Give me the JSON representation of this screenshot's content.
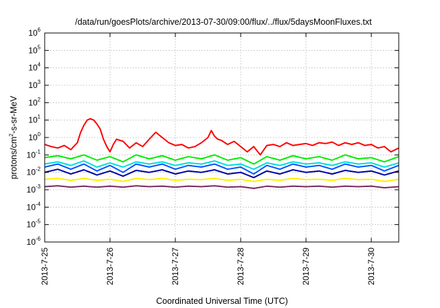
{
  "chart_data": {
    "type": "line",
    "title": "/data/run/goesPlots/archive/2013-07-30/09:00/flux/../flux/5daysMoonFluxes.txt",
    "xlabel": "Coordinated Universal Time (UTC)",
    "ylabel": {
      "base": "protons/cm",
      "sup": "2",
      "rest": "-s-sr-MeV"
    },
    "xlim": [
      0,
      5.42
    ],
    "x_unit": "days since 2013-7-25 00:00 UTC",
    "x_ticks": [
      {
        "x": 0,
        "label": "2013-7-25"
      },
      {
        "x": 1,
        "label": "2013-7-26"
      },
      {
        "x": 2,
        "label": "2013-7-27"
      },
      {
        "x": 3,
        "label": "2013-7-28"
      },
      {
        "x": 4,
        "label": "2013-7-29"
      },
      {
        "x": 5,
        "label": "2013-7-30"
      }
    ],
    "y_scale": "log",
    "ylim": [
      -6,
      6
    ],
    "y_ticks": [
      {
        "exp": 6,
        "base": "10",
        "sup": "6"
      },
      {
        "exp": 5,
        "base": "10",
        "sup": "5"
      },
      {
        "exp": 4,
        "base": "10",
        "sup": "4"
      },
      {
        "exp": 3,
        "base": "10",
        "sup": "3"
      },
      {
        "exp": 2,
        "base": "10",
        "sup": "2"
      },
      {
        "exp": 1,
        "base": "10",
        "sup": "1"
      },
      {
        "exp": 0,
        "base": "10",
        "sup": "0"
      },
      {
        "exp": -1,
        "base": "10",
        "sup": "-1"
      },
      {
        "exp": -2,
        "base": "10",
        "sup": "-2"
      },
      {
        "exp": -3,
        "base": "10",
        "sup": "-3"
      },
      {
        "exp": -4,
        "base": "10",
        "sup": "-4"
      },
      {
        "exp": -5,
        "base": "10",
        "sup": "-5"
      },
      {
        "exp": -6,
        "base": "10",
        "sup": "-6"
      }
    ],
    "grid": true,
    "legend": "none",
    "series": [
      {
        "color": "#ff0000",
        "x": [
          0,
          0.1,
          0.2,
          0.3,
          0.4,
          0.5,
          0.55,
          0.6,
          0.65,
          0.7,
          0.75,
          0.8,
          0.85,
          0.9,
          0.95,
          1.0,
          1.05,
          1.1,
          1.2,
          1.3,
          1.4,
          1.5,
          1.6,
          1.7,
          1.8,
          1.9,
          2.0,
          2.1,
          2.2,
          2.3,
          2.4,
          2.5,
          2.55,
          2.6,
          2.65,
          2.7,
          2.8,
          2.9,
          3.0,
          3.1,
          3.2,
          3.3,
          3.4,
          3.5,
          3.6,
          3.7,
          3.8,
          3.9,
          4.0,
          4.1,
          4.2,
          4.3,
          4.4,
          4.5,
          4.6,
          4.7,
          4.8,
          4.9,
          5.0,
          5.1,
          5.2,
          5.3,
          5.42
        ],
        "y": [
          0.4,
          0.3,
          0.25,
          0.35,
          0.2,
          0.5,
          2.0,
          5.0,
          10.0,
          12.0,
          10.0,
          6.0,
          3.0,
          0.8,
          0.3,
          0.15,
          0.4,
          0.8,
          0.6,
          0.25,
          0.5,
          0.3,
          0.8,
          2.0,
          1.0,
          0.5,
          0.35,
          0.4,
          0.25,
          0.3,
          0.5,
          1.0,
          2.5,
          1.2,
          0.8,
          0.7,
          0.4,
          0.6,
          0.3,
          0.15,
          0.3,
          0.1,
          0.35,
          0.4,
          0.3,
          0.5,
          0.35,
          0.4,
          0.45,
          0.35,
          0.5,
          0.45,
          0.55,
          0.35,
          0.5,
          0.4,
          0.5,
          0.35,
          0.4,
          0.25,
          0.3,
          0.15,
          0.25
        ]
      },
      {
        "color": "#00ee00",
        "x": [
          0,
          0.2,
          0.4,
          0.6,
          0.8,
          1.0,
          1.2,
          1.4,
          1.6,
          1.8,
          2.0,
          2.2,
          2.4,
          2.6,
          2.8,
          3.0,
          3.2,
          3.4,
          3.6,
          3.8,
          4.0,
          4.2,
          4.4,
          4.6,
          4.8,
          5.0,
          5.2,
          5.42
        ],
        "y": [
          0.07,
          0.09,
          0.06,
          0.1,
          0.05,
          0.08,
          0.04,
          0.1,
          0.06,
          0.09,
          0.05,
          0.08,
          0.06,
          0.1,
          0.05,
          0.07,
          0.03,
          0.08,
          0.05,
          0.09,
          0.06,
          0.08,
          0.05,
          0.1,
          0.06,
          0.07,
          0.04,
          0.08
        ]
      },
      {
        "color": "#00dddd",
        "x": [
          0,
          0.2,
          0.4,
          0.6,
          0.8,
          1.0,
          1.2,
          1.4,
          1.6,
          1.8,
          2.0,
          2.2,
          2.4,
          2.6,
          2.8,
          3.0,
          3.2,
          3.4,
          3.6,
          3.8,
          4.0,
          4.2,
          4.4,
          4.6,
          4.8,
          5.0,
          5.2,
          5.42
        ],
        "y": [
          0.03,
          0.04,
          0.025,
          0.045,
          0.02,
          0.035,
          0.02,
          0.04,
          0.03,
          0.04,
          0.025,
          0.035,
          0.03,
          0.045,
          0.025,
          0.03,
          0.015,
          0.035,
          0.025,
          0.04,
          0.03,
          0.035,
          0.025,
          0.04,
          0.03,
          0.035,
          0.02,
          0.035
        ]
      },
      {
        "color": "#0055ff",
        "x": [
          0,
          0.2,
          0.4,
          0.6,
          0.8,
          1.0,
          1.2,
          1.4,
          1.6,
          1.8,
          2.0,
          2.2,
          2.4,
          2.6,
          2.8,
          3.0,
          3.2,
          3.4,
          3.6,
          3.8,
          4.0,
          4.2,
          4.4,
          4.6,
          4.8,
          5.0,
          5.2,
          5.42
        ],
        "y": [
          0.02,
          0.03,
          0.015,
          0.03,
          0.012,
          0.025,
          0.01,
          0.03,
          0.02,
          0.03,
          0.015,
          0.025,
          0.02,
          0.03,
          0.015,
          0.02,
          0.008,
          0.025,
          0.015,
          0.03,
          0.02,
          0.025,
          0.015,
          0.03,
          0.02,
          0.025,
          0.012,
          0.025
        ]
      },
      {
        "color": "#0000aa",
        "x": [
          0,
          0.2,
          0.4,
          0.6,
          0.8,
          1.0,
          1.2,
          1.4,
          1.6,
          1.8,
          2.0,
          2.2,
          2.4,
          2.6,
          2.8,
          3.0,
          3.2,
          3.4,
          3.6,
          3.8,
          4.0,
          4.2,
          4.4,
          4.6,
          4.8,
          5.0,
          5.2,
          5.42
        ],
        "y": [
          0.01,
          0.015,
          0.008,
          0.014,
          0.007,
          0.012,
          0.006,
          0.013,
          0.01,
          0.014,
          0.008,
          0.012,
          0.01,
          0.014,
          0.008,
          0.01,
          0.005,
          0.012,
          0.008,
          0.014,
          0.01,
          0.012,
          0.008,
          0.013,
          0.01,
          0.012,
          0.007,
          0.012
        ]
      },
      {
        "color": "#ffee00",
        "x": [
          0,
          0.2,
          0.4,
          0.6,
          0.8,
          1.0,
          1.2,
          1.4,
          1.6,
          1.8,
          2.0,
          2.2,
          2.4,
          2.6,
          2.8,
          3.0,
          3.2,
          3.4,
          3.6,
          3.8,
          4.0,
          4.2,
          4.4,
          4.6,
          4.8,
          5.0,
          5.2,
          5.42
        ],
        "y": [
          0.004,
          0.0045,
          0.0035,
          0.0045,
          0.0035,
          0.004,
          0.003,
          0.0045,
          0.0038,
          0.0045,
          0.0035,
          0.004,
          0.0038,
          0.0045,
          0.0035,
          0.004,
          0.003,
          0.004,
          0.0035,
          0.0045,
          0.0038,
          0.004,
          0.0035,
          0.0045,
          0.0038,
          0.004,
          0.003,
          0.004
        ]
      },
      {
        "color": "#7a2860",
        "x": [
          0,
          0.2,
          0.4,
          0.6,
          0.8,
          1.0,
          1.2,
          1.4,
          1.6,
          1.8,
          2.0,
          2.2,
          2.4,
          2.6,
          2.8,
          3.0,
          3.2,
          3.4,
          3.6,
          3.8,
          4.0,
          4.2,
          4.4,
          4.6,
          4.8,
          5.0,
          5.2,
          5.42
        ],
        "y": [
          0.0015,
          0.0017,
          0.0014,
          0.0016,
          0.0014,
          0.0016,
          0.0014,
          0.0017,
          0.0015,
          0.0016,
          0.0014,
          0.0016,
          0.0015,
          0.0017,
          0.0014,
          0.0015,
          0.0012,
          0.0016,
          0.0014,
          0.0016,
          0.0015,
          0.0016,
          0.0014,
          0.0016,
          0.0015,
          0.0016,
          0.0013,
          0.0015
        ]
      }
    ]
  }
}
